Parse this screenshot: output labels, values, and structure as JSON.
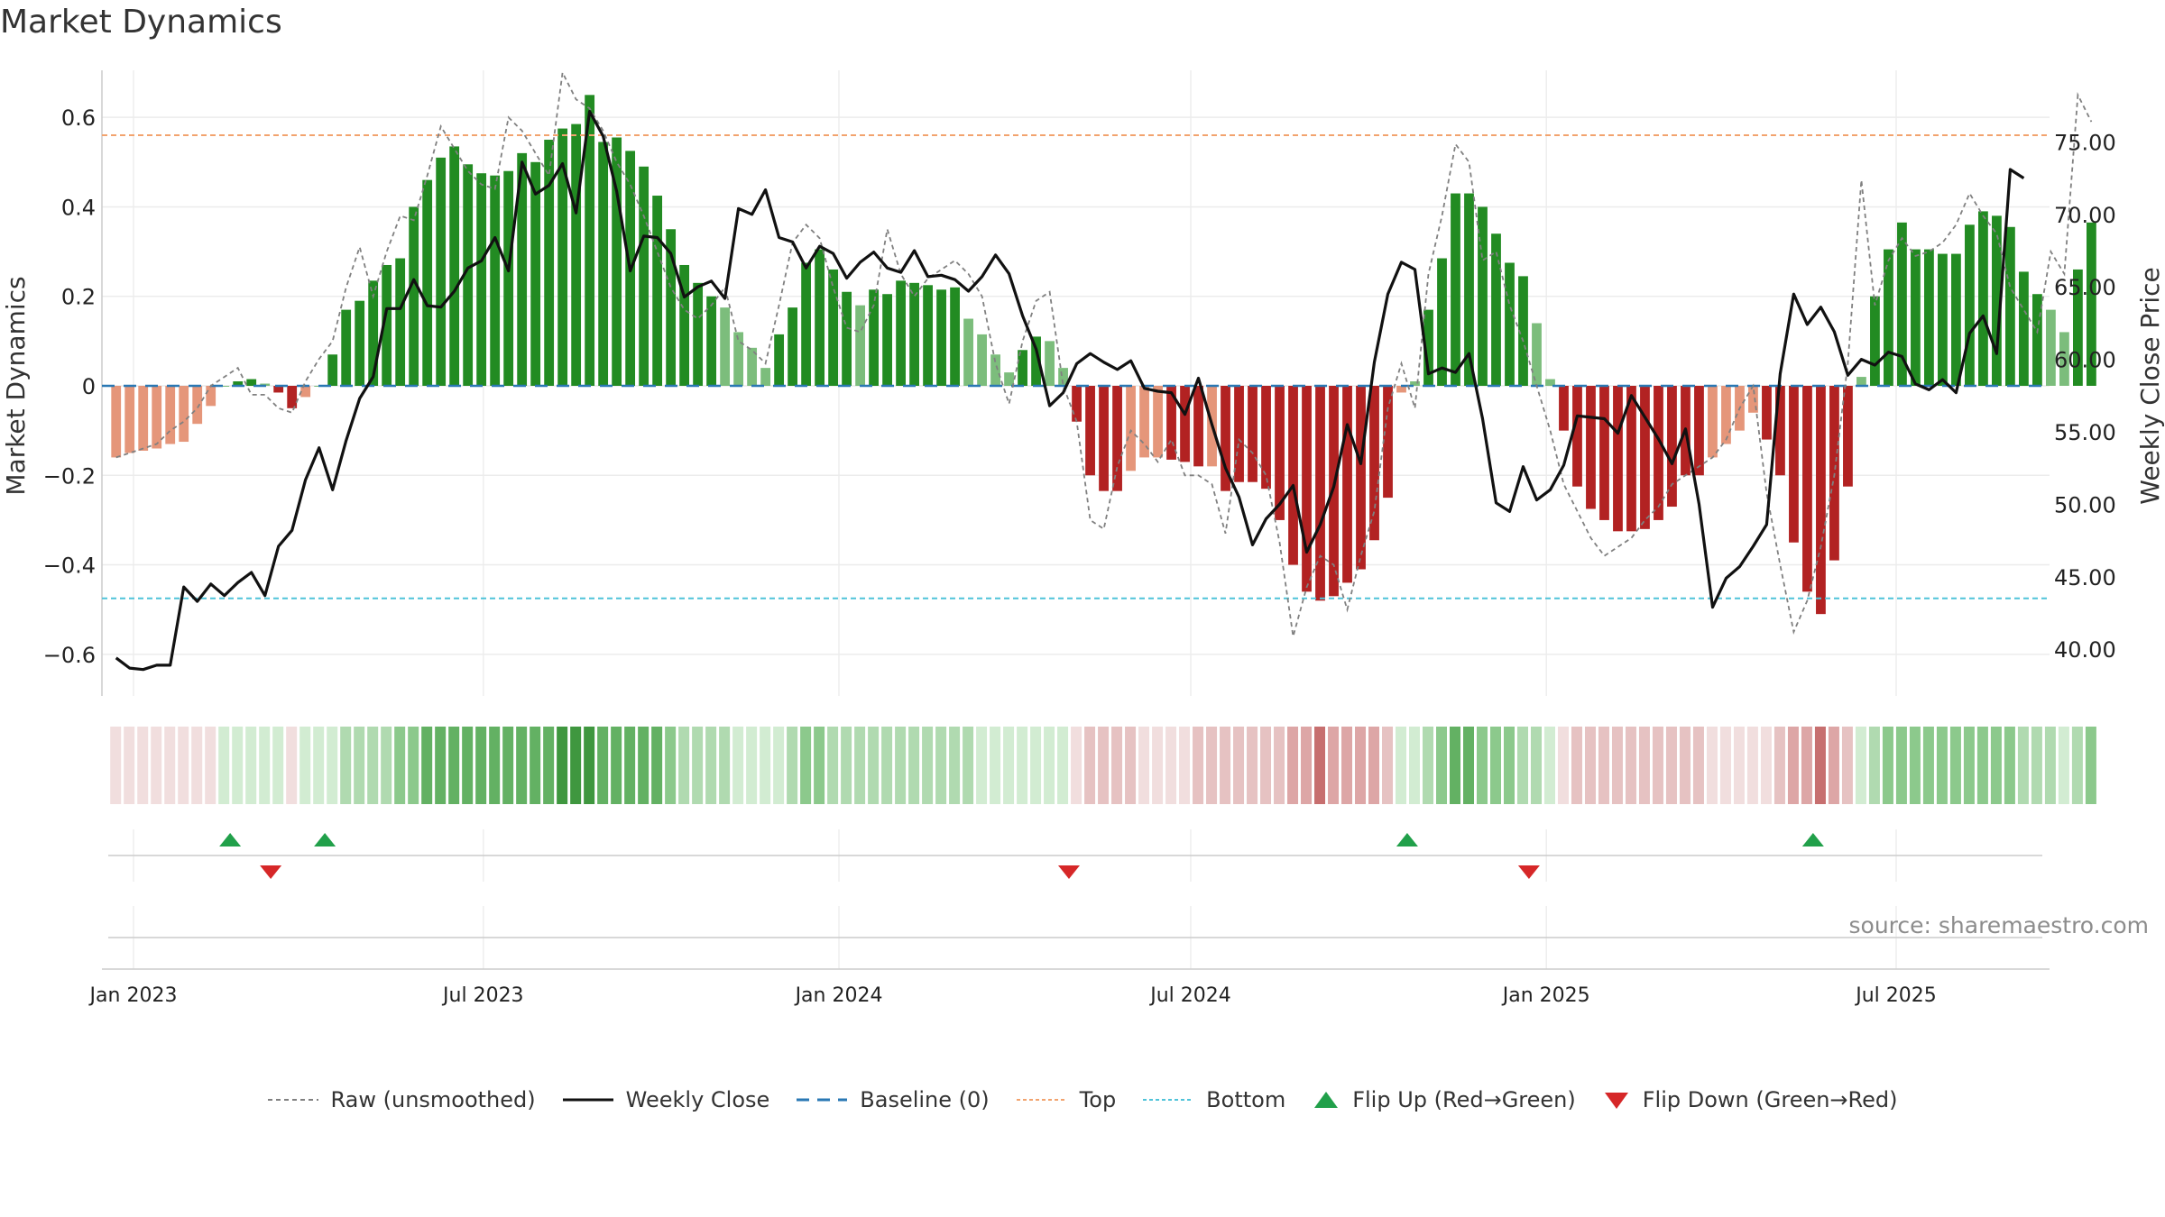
{
  "chart_data": {
    "type": "bar",
    "title": "Market Dynamics",
    "ylabel_left": "Market Dynamics",
    "ylabel_right": "Weekly Close Price",
    "ylim_left": [
      -0.7,
      0.71
    ],
    "ylim_right": [
      37.0,
      80.3
    ],
    "left_ticks": [
      "0.6",
      "0.4",
      "0.2",
      "0",
      "−0.2",
      "−0.4",
      "−0.6"
    ],
    "left_tick_values": [
      0.6,
      0.4,
      0.2,
      0,
      -0.2,
      -0.4,
      -0.6
    ],
    "right_ticks": [
      "75.00",
      "70.00",
      "65.00",
      "60.00",
      "55.00",
      "50.00",
      "45.00",
      "40.00"
    ],
    "right_tick_values": [
      75,
      70,
      65,
      60,
      55,
      50,
      45,
      40
    ],
    "x_ticks": [
      "Jan 2023",
      "Jul 2023",
      "Jan 2024",
      "Jul 2024",
      "Jan 2025",
      "Jul 2025"
    ],
    "x_tick_dates": [
      "2023-01-01",
      "2023-07-01",
      "2024-01-01",
      "2024-07-01",
      "2025-01-01",
      "2025-07-01"
    ],
    "start_date": "2022-12-23",
    "interval_days": 7,
    "top_line": 0.56,
    "bottom_line": -0.475,
    "baseline": 0,
    "dynamics": [
      -0.16,
      -0.15,
      -0.145,
      -0.14,
      -0.13,
      -0.125,
      -0.085,
      -0.045,
      0,
      0.01,
      0.015,
      0.005,
      -0.015,
      -0.05,
      -0.025,
      0,
      0.07,
      0.17,
      0.19,
      0.235,
      0.27,
      0.285,
      0.4,
      0.46,
      0.51,
      0.535,
      0.495,
      0.475,
      0.47,
      0.48,
      0.52,
      0.5,
      0.55,
      0.575,
      0.585,
      0.65,
      0.545,
      0.555,
      0.525,
      0.49,
      0.425,
      0.35,
      0.27,
      0.23,
      0.2,
      0.175,
      0.12,
      0.085,
      0.04,
      0.115,
      0.175,
      0.275,
      0.305,
      0.26,
      0.21,
      0.18,
      0.215,
      0.205,
      0.235,
      0.23,
      0.225,
      0.215,
      0.22,
      0.15,
      0.115,
      0.07,
      0.03,
      0.08,
      0.11,
      0.1,
      0.04,
      -0.08,
      -0.2,
      -0.235,
      -0.235,
      -0.19,
      -0.16,
      -0.16,
      -0.165,
      -0.17,
      -0.18,
      -0.18,
      -0.235,
      -0.215,
      -0.215,
      -0.23,
      -0.3,
      -0.4,
      -0.46,
      -0.48,
      -0.47,
      -0.44,
      -0.41,
      -0.345,
      -0.25,
      -0.015,
      0.01,
      0.17,
      0.285,
      0.43,
      0.43,
      0.4,
      0.34,
      0.275,
      0.245,
      0.14,
      0.015,
      -0.1,
      -0.225,
      -0.275,
      -0.3,
      -0.325,
      -0.325,
      -0.32,
      -0.3,
      -0.27,
      -0.2,
      -0.2,
      -0.16,
      -0.13,
      -0.1,
      -0.06,
      -0.12,
      -0.2,
      -0.35,
      -0.46,
      -0.51,
      -0.39,
      -0.225,
      0.02,
      0.2,
      0.305,
      0.365,
      0.305,
      0.305,
      0.295,
      0.295,
      0.36,
      0.39,
      0.38,
      0.355,
      0.255,
      0.205,
      0.17,
      0.12,
      0.26,
      0.365
    ],
    "raw": [
      -0.16,
      -0.15,
      -0.14,
      -0.13,
      -0.1,
      -0.08,
      -0.05,
      0,
      0.02,
      0.04,
      -0.02,
      -0.02,
      -0.05,
      -0.06,
      0.01,
      0.06,
      0.1,
      0.22,
      0.31,
      0.2,
      0.3,
      0.38,
      0.37,
      0.47,
      0.58,
      0.53,
      0.48,
      0.45,
      0.44,
      0.6,
      0.57,
      0.52,
      0.47,
      0.7,
      0.64,
      0.62,
      0.57,
      0.5,
      0.45,
      0.38,
      0.3,
      0.22,
      0.17,
      0.15,
      0.18,
      0.22,
      0.1,
      0.08,
      0.05,
      0.18,
      0.32,
      0.36,
      0.33,
      0.22,
      0.13,
      0.12,
      0.18,
      0.35,
      0.25,
      0.2,
      0.24,
      0.26,
      0.28,
      0.25,
      0.2,
      0.05,
      -0.04,
      0.1,
      0.19,
      0.21,
      0.0,
      -0.08,
      -0.3,
      -0.32,
      -0.18,
      -0.1,
      -0.13,
      -0.17,
      -0.12,
      -0.2,
      -0.2,
      -0.22,
      -0.33,
      -0.12,
      -0.15,
      -0.2,
      -0.35,
      -0.56,
      -0.45,
      -0.38,
      -0.4,
      -0.5,
      -0.38,
      -0.28,
      -0.05,
      0.05,
      -0.05,
      0.25,
      0.38,
      0.54,
      0.5,
      0.28,
      0.3,
      0.18,
      0.1,
      0.0,
      -0.1,
      -0.22,
      -0.28,
      -0.34,
      -0.38,
      -0.36,
      -0.34,
      -0.3,
      -0.27,
      -0.22,
      -0.2,
      -0.18,
      -0.16,
      -0.12,
      -0.05,
      0.0,
      -0.24,
      -0.4,
      -0.55,
      -0.48,
      -0.36,
      -0.2,
      0.05,
      0.46,
      0.18,
      0.28,
      0.33,
      0.29,
      0.3,
      0.32,
      0.36,
      0.43,
      0.38,
      0.34,
      0.22,
      0.17,
      0.12,
      0.3,
      0.25,
      0.65,
      0.59
    ],
    "close": [
      39.4,
      38.7,
      38.6,
      38.9,
      38.9,
      44.3,
      43.3,
      44.5,
      43.7,
      44.6,
      45.3,
      43.7,
      47.1,
      48.2,
      51.7,
      53.9,
      51.0,
      54.4,
      57.3,
      58.8,
      63.5,
      63.5,
      65.5,
      63.7,
      63.6,
      64.7,
      66.3,
      66.8,
      68.4,
      66.1,
      73.6,
      71.4,
      72.0,
      73.5,
      70.1,
      77.1,
      75.4,
      71.6,
      66.1,
      68.5,
      68.4,
      67.3,
      64.3,
      65.0,
      65.4,
      64.2,
      70.4,
      70.0,
      71.7,
      68.4,
      68.1,
      66.3,
      67.8,
      67.3,
      65.6,
      66.7,
      67.4,
      66.3,
      66.0,
      67.5,
      65.7,
      65.8,
      65.5,
      64.7,
      65.7,
      67.2,
      65.9,
      63.0,
      60.7,
      56.8,
      57.7,
      59.7,
      60.4,
      59.8,
      59.3,
      59.9,
      58.0,
      57.8,
      57.7,
      56.2,
      58.7,
      55.5,
      52.5,
      50.5,
      47.2,
      49.0,
      50.0,
      51.3,
      46.7,
      48.6,
      51.2,
      55.5,
      52.8,
      59.8,
      64.5,
      66.7,
      66.2,
      59.0,
      59.4,
      59.1,
      60.4,
      55.9,
      50.1,
      49.5,
      52.6,
      50.3,
      51.0,
      52.7,
      56.1,
      56.0,
      55.9,
      54.9,
      57.5,
      56.0,
      54.5,
      52.8,
      55.2,
      50.0,
      42.9,
      44.9,
      45.7,
      47.1,
      48.6,
      59.0,
      64.5,
      62.4,
      63.6,
      61.9,
      58.9,
      60.0,
      59.6,
      60.5,
      60.2,
      58.3,
      57.9,
      58.6,
      57.7,
      61.8,
      63.0,
      60.4,
      73.1,
      72.5
    ],
    "pane_colors": {
      "strong_green": "#228b22",
      "light_green": "#7cbd7c",
      "strong_red": "#b22222",
      "light_red": "#e5967a"
    },
    "bucket_colors": [
      "#c76f6f",
      "#dda6a6",
      "#e6c2c2",
      "#f1dede",
      "#d2ecd2",
      "#b0dab0",
      "#8cc98c",
      "#63b163",
      "#3f973f"
    ],
    "flip_up_dates": [
      "2023-02-20",
      "2023-04-10",
      "2024-10-21",
      "2025-05-19"
    ],
    "flip_down_dates": [
      "2023-03-13",
      "2024-04-29",
      "2024-12-23"
    ],
    "colors": {
      "flip_up": "#21a04a",
      "flip_down": "#d62728",
      "top": "#f2a36e",
      "bottom": "#4fc3d9",
      "baseline": "#2a78b4",
      "raw": "#808080",
      "close": "#111111"
    },
    "legend": [
      {
        "label": "Raw (unsmoothed)",
        "style": "dotted-gray"
      },
      {
        "label": "Weekly Close",
        "style": "solid-black"
      },
      {
        "label": "Baseline (0)",
        "style": "dashed-blue"
      },
      {
        "label": "Top",
        "style": "dotted-orange"
      },
      {
        "label": "Bottom",
        "style": "dotted-cyan"
      },
      {
        "label": "Flip Up (Red→Green)",
        "style": "triangle-up-green"
      },
      {
        "label": "Flip Down (Green→Red)",
        "style": "triangle-down-red"
      }
    ],
    "legend_position": "bottom-center",
    "source": "source: sharemaestro.com"
  }
}
